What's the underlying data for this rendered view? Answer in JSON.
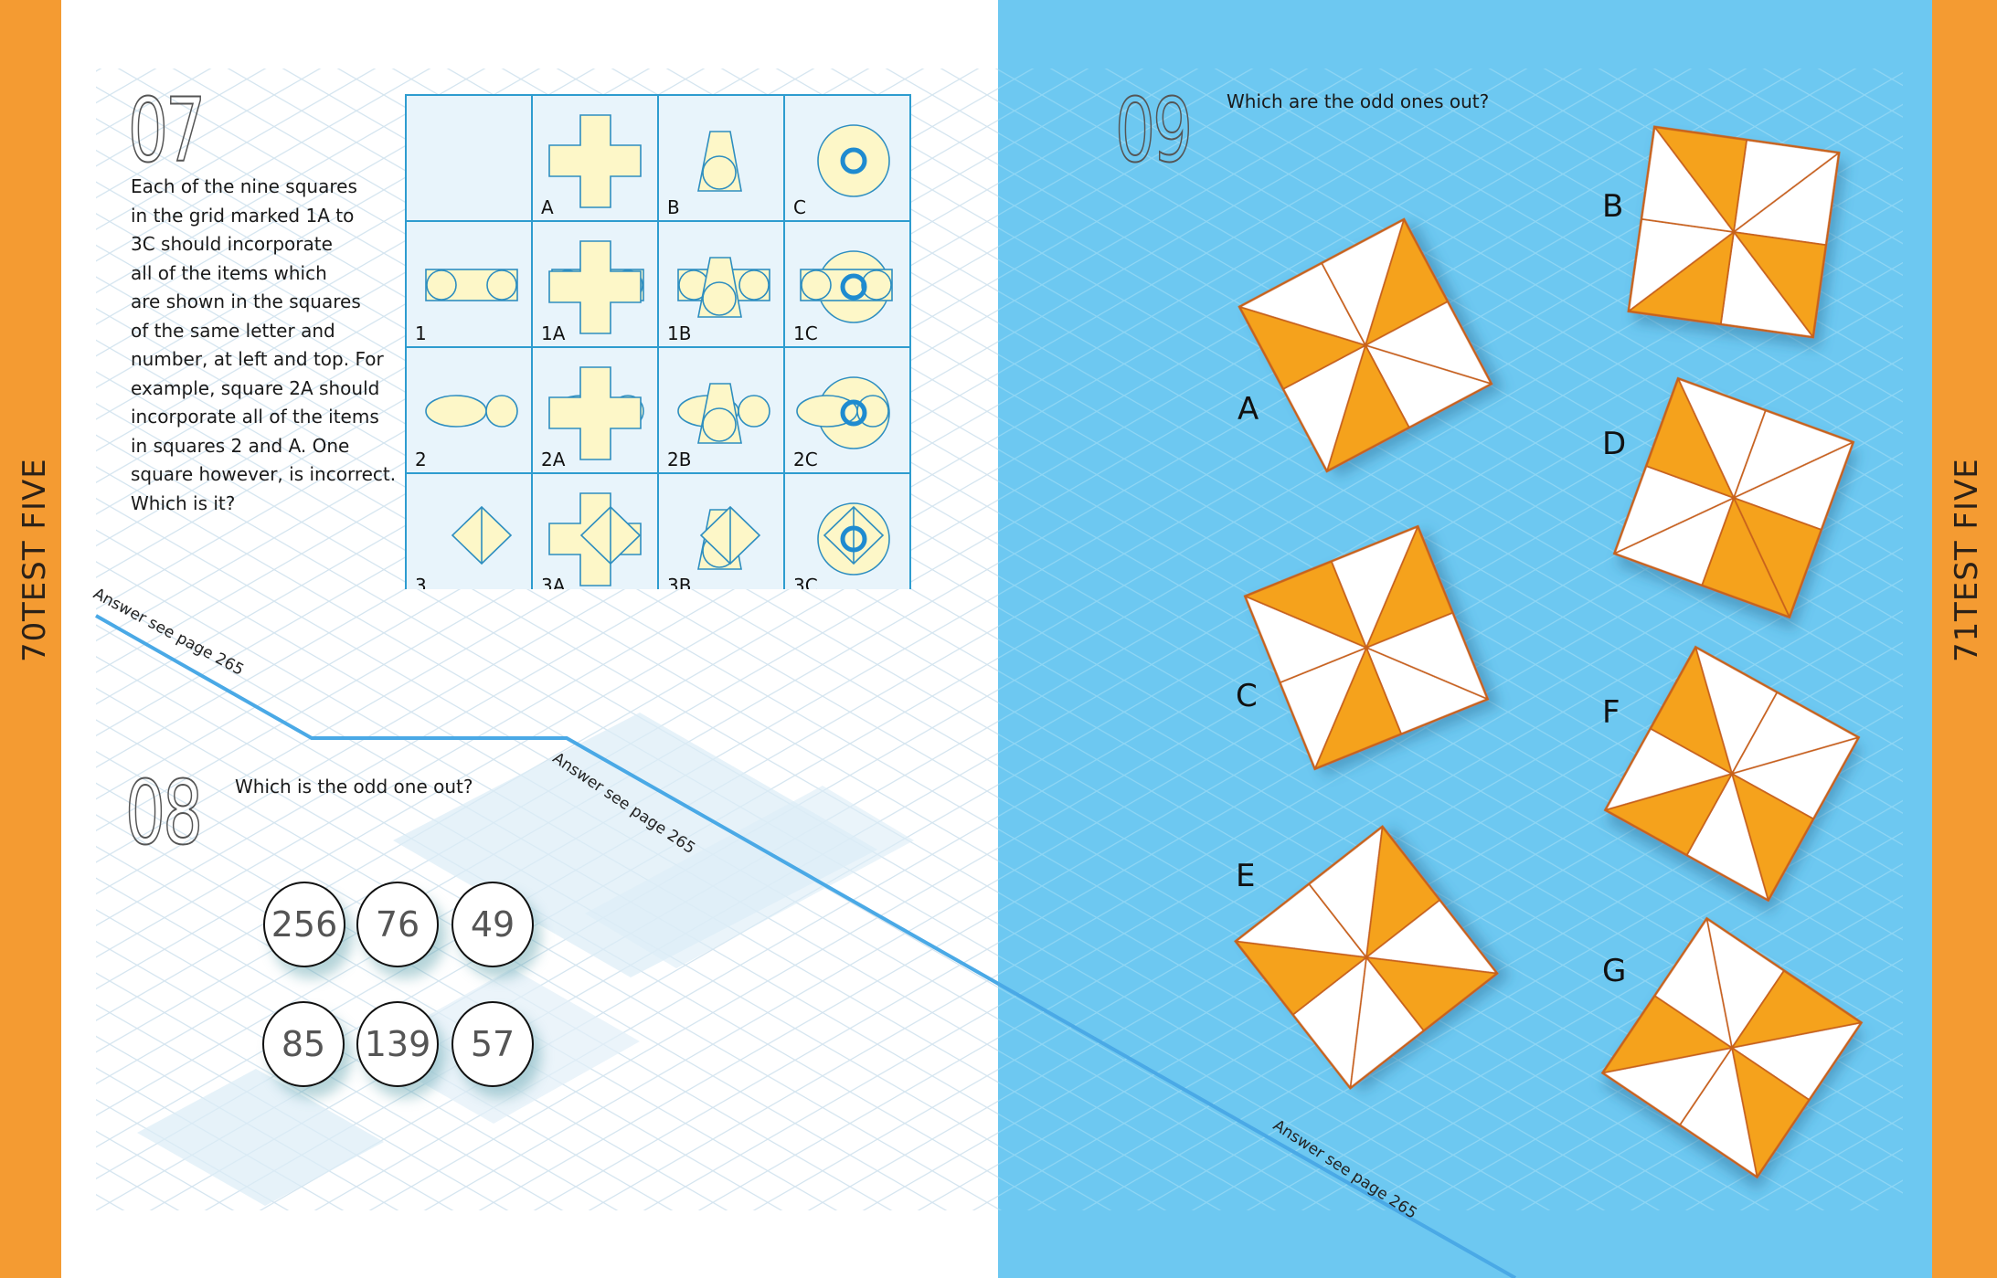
{
  "left_page": {
    "section": "TEST FIVE",
    "page_number": "70",
    "puzzle_07": {
      "number": "07",
      "text_lines": [
        "Each of the nine squares",
        "in the grid marked 1A to",
        "3C should incorporate",
        "all of the items which",
        "are shown in the squares",
        "of the same letter and",
        "number, at left and top. For",
        "example, square 2A should",
        "incorporate all of the items",
        "in squares 2 and A. One",
        "square however, is incorrect.",
        "Which is it?"
      ],
      "answer": "Answer see page 265",
      "grid_labels": [
        "",
        "A",
        "B",
        "C",
        "1",
        "1A",
        "1B",
        "1C",
        "2",
        "2A",
        "2B",
        "2C",
        "3",
        "3A",
        "3B",
        "3C"
      ]
    },
    "puzzle_08": {
      "number": "08",
      "question": "Which is the odd one out?",
      "answer": "Answer see page 265",
      "numbers": [
        "256",
        "76",
        "49",
        "85",
        "139",
        "57"
      ]
    }
  },
  "right_page": {
    "section": "TEST FIVE",
    "page_number": "71",
    "puzzle_09": {
      "number": "09",
      "question": "Which are the odd ones out?",
      "answer": "Answer see page 265",
      "options": [
        {
          "label": "A",
          "shaded_segments": [
            7,
            2,
            5
          ]
        },
        {
          "label": "B",
          "shaded_segments": [
            0,
            3,
            5
          ]
        },
        {
          "label": "C",
          "shaded_segments": [
            0,
            2,
            5
          ]
        },
        {
          "label": "D",
          "shaded_segments": [
            7,
            3,
            4
          ]
        },
        {
          "label": "E",
          "shaded_segments": [
            7,
            2,
            4
          ]
        },
        {
          "label": "F",
          "shaded_segments": [
            7,
            3,
            5
          ]
        },
        {
          "label": "G",
          "shaded_segments": [
            1,
            3,
            6
          ]
        }
      ]
    }
  },
  "colors": {
    "side_bar": "#f49b32",
    "right_page_bg": "#6dc8f1",
    "shape_fill": "#fdf7c8",
    "grid_stroke": "#2e9ccf",
    "segment_orange": "#f5a21d",
    "segment_outline": "#c8621a"
  }
}
